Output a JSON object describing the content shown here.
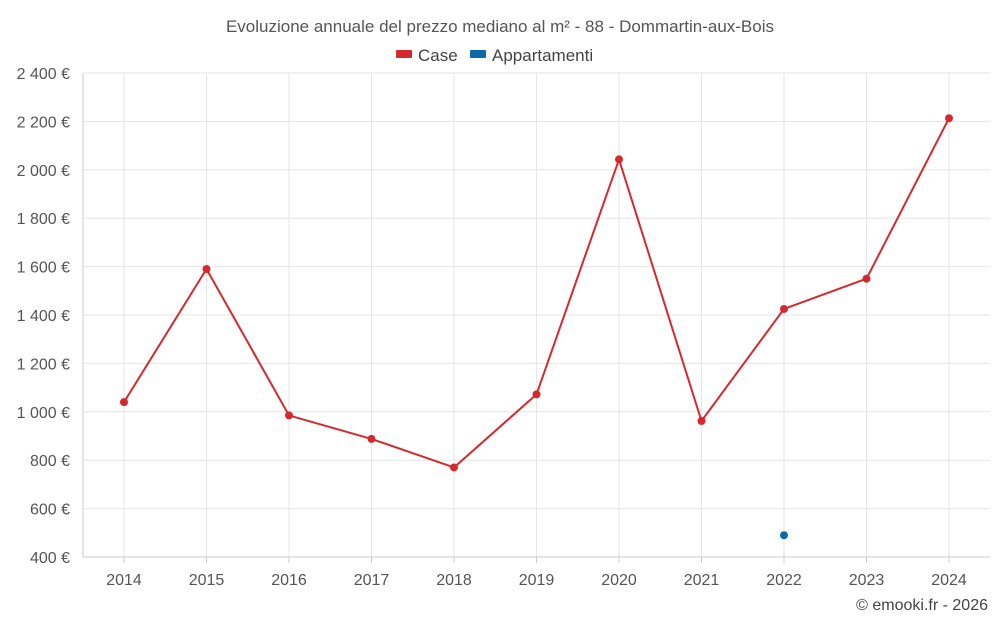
{
  "chart_data": {
    "type": "line",
    "title": "Evoluzione annuale del prezzo mediano al m² - 88 - Dommartin-aux-Bois",
    "xlabel": "",
    "ylabel": "",
    "categories": [
      "2014",
      "2015",
      "2016",
      "2017",
      "2018",
      "2019",
      "2020",
      "2021",
      "2022",
      "2023",
      "2024"
    ],
    "ylim": [
      400,
      2400
    ],
    "yticks": [
      400,
      600,
      800,
      1000,
      1200,
      1400,
      1600,
      1800,
      2000,
      2200,
      2400
    ],
    "ytick_labels": [
      "400 €",
      "600 €",
      "800 €",
      "1 000 €",
      "1 200 €",
      "1 400 €",
      "1 600 €",
      "1 800 €",
      "2 000 €",
      "2 200 €",
      "2 400 €"
    ],
    "grid": true,
    "legend_position": "top-center",
    "series": [
      {
        "name": "Case",
        "color": "#d42a2f",
        "values": [
          1040,
          1590,
          985,
          888,
          770,
          1072,
          2043,
          962,
          1425,
          1550,
          2213
        ]
      },
      {
        "name": "Appartamenti",
        "color": "#0d6aa8",
        "values": [
          null,
          null,
          null,
          null,
          null,
          null,
          null,
          null,
          490,
          null,
          null
        ]
      }
    ]
  },
  "credit": "© emooki.fr - 2026"
}
